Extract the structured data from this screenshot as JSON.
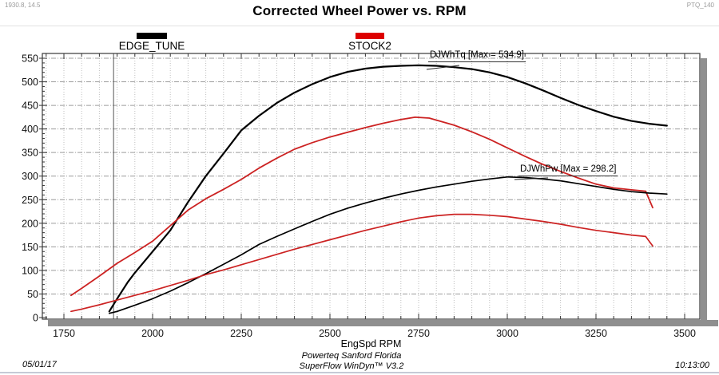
{
  "header": {
    "cursor_readout": "1930.8, 14.5",
    "test_id": "PTQ_140",
    "title": "Corrected Wheel Power vs. RPM"
  },
  "legend": [
    {
      "label": "EDGE_TUNE",
      "color": "#000000"
    },
    {
      "label": "STOCK2",
      "color": "#dd0000"
    }
  ],
  "annotations": [
    {
      "id": "torque-max",
      "text": "DJWhTq [Max = 534.9]",
      "max": 534.9
    },
    {
      "id": "power-max",
      "text": "DJWhPw [Max = 298.2]",
      "max": 298.2
    }
  ],
  "x_axis_title": "EngSpd RPM",
  "footer": {
    "date": "05/01/17",
    "facility": "Powerteq Sanford Florida",
    "software": "SuperFlow WinDyn™ V3.2",
    "time": "10:13:00"
  },
  "chart_data": {
    "type": "line",
    "title": "Corrected Wheel Power vs. RPM",
    "xlabel": "EngSpd RPM",
    "ylabel": "",
    "xlim": [
      1690,
      3540
    ],
    "ylim": [
      0,
      560
    ],
    "x_ticks": [
      1750,
      2000,
      2250,
      2500,
      2750,
      3000,
      3250,
      3500
    ],
    "y_ticks": [
      0,
      50,
      100,
      150,
      200,
      250,
      300,
      350,
      400,
      450,
      500,
      550
    ],
    "grid": {
      "on": true,
      "x_minor_step": 50,
      "y_step": 50
    },
    "legend_position": "top",
    "cursor_line_rpm": 1890,
    "series": [
      {
        "id": "edge-tune-torque",
        "name": "EDGE_TUNE DJWhTq",
        "color": "#000000",
        "width": 2.2,
        "points": [
          [
            1878,
            13
          ],
          [
            1900,
            40
          ],
          [
            1930,
            75
          ],
          [
            1950,
            95
          ],
          [
            2000,
            140
          ],
          [
            2050,
            185
          ],
          [
            2100,
            245
          ],
          [
            2150,
            300
          ],
          [
            2200,
            348
          ],
          [
            2250,
            397
          ],
          [
            2300,
            428
          ],
          [
            2350,
            455
          ],
          [
            2400,
            477
          ],
          [
            2450,
            495
          ],
          [
            2500,
            510
          ],
          [
            2550,
            521
          ],
          [
            2600,
            528
          ],
          [
            2650,
            532
          ],
          [
            2700,
            534
          ],
          [
            2750,
            534.9
          ],
          [
            2800,
            534
          ],
          [
            2850,
            531
          ],
          [
            2900,
            527
          ],
          [
            2950,
            520
          ],
          [
            3000,
            510
          ],
          [
            3050,
            497
          ],
          [
            3100,
            482
          ],
          [
            3150,
            466
          ],
          [
            3200,
            451
          ],
          [
            3250,
            438
          ],
          [
            3300,
            426
          ],
          [
            3350,
            417
          ],
          [
            3400,
            411
          ],
          [
            3450,
            407
          ]
        ]
      },
      {
        "id": "stock2-torque",
        "name": "STOCK2 DJWhTq",
        "color": "#cc2222",
        "width": 1.8,
        "points": [
          [
            1770,
            47
          ],
          [
            1800,
            62
          ],
          [
            1850,
            88
          ],
          [
            1900,
            115
          ],
          [
            1950,
            138
          ],
          [
            2000,
            162
          ],
          [
            2050,
            195
          ],
          [
            2100,
            228
          ],
          [
            2150,
            252
          ],
          [
            2200,
            272
          ],
          [
            2250,
            293
          ],
          [
            2300,
            317
          ],
          [
            2350,
            338
          ],
          [
            2400,
            357
          ],
          [
            2450,
            371
          ],
          [
            2500,
            383
          ],
          [
            2550,
            393
          ],
          [
            2600,
            403
          ],
          [
            2650,
            412
          ],
          [
            2700,
            420
          ],
          [
            2740,
            425
          ],
          [
            2780,
            423
          ],
          [
            2850,
            408
          ],
          [
            2900,
            394
          ],
          [
            2950,
            378
          ],
          [
            3000,
            360
          ],
          [
            3050,
            342
          ],
          [
            3100,
            325
          ],
          [
            3150,
            310
          ],
          [
            3200,
            296
          ],
          [
            3250,
            283
          ],
          [
            3300,
            275
          ],
          [
            3350,
            271
          ],
          [
            3390,
            268
          ],
          [
            3410,
            233
          ]
        ]
      },
      {
        "id": "edge-tune-power",
        "name": "EDGE_TUNE DJWhPw",
        "color": "#000000",
        "width": 1.7,
        "points": [
          [
            1878,
            9
          ],
          [
            1900,
            13
          ],
          [
            1950,
            26
          ],
          [
            2000,
            40
          ],
          [
            2050,
            56
          ],
          [
            2100,
            74
          ],
          [
            2150,
            93
          ],
          [
            2200,
            113
          ],
          [
            2250,
            133
          ],
          [
            2300,
            155
          ],
          [
            2350,
            172
          ],
          [
            2400,
            188
          ],
          [
            2450,
            204
          ],
          [
            2500,
            219
          ],
          [
            2550,
            232
          ],
          [
            2600,
            243
          ],
          [
            2650,
            253
          ],
          [
            2700,
            262
          ],
          [
            2750,
            270
          ],
          [
            2800,
            277
          ],
          [
            2850,
            283
          ],
          [
            2900,
            289
          ],
          [
            2950,
            294
          ],
          [
            3000,
            298.2
          ],
          [
            3050,
            297
          ],
          [
            3100,
            294
          ],
          [
            3150,
            290
          ],
          [
            3200,
            284
          ],
          [
            3250,
            278
          ],
          [
            3300,
            272
          ],
          [
            3350,
            267
          ],
          [
            3400,
            264
          ],
          [
            3450,
            262
          ]
        ]
      },
      {
        "id": "stock2-power",
        "name": "STOCK2 DJWhPw",
        "color": "#cc2222",
        "width": 1.7,
        "points": [
          [
            1770,
            13
          ],
          [
            1800,
            18
          ],
          [
            1850,
            27
          ],
          [
            1900,
            37
          ],
          [
            1950,
            47
          ],
          [
            2000,
            57
          ],
          [
            2050,
            68
          ],
          [
            2100,
            79
          ],
          [
            2150,
            91
          ],
          [
            2200,
            101
          ],
          [
            2250,
            112
          ],
          [
            2300,
            123
          ],
          [
            2350,
            134
          ],
          [
            2400,
            145
          ],
          [
            2450,
            155
          ],
          [
            2500,
            165
          ],
          [
            2550,
            175
          ],
          [
            2600,
            185
          ],
          [
            2650,
            194
          ],
          [
            2700,
            203
          ],
          [
            2750,
            211
          ],
          [
            2800,
            216
          ],
          [
            2850,
            219
          ],
          [
            2900,
            219
          ],
          [
            2950,
            217
          ],
          [
            3000,
            214
          ],
          [
            3050,
            209
          ],
          [
            3100,
            204
          ],
          [
            3150,
            198
          ],
          [
            3200,
            191
          ],
          [
            3250,
            185
          ],
          [
            3300,
            180
          ],
          [
            3350,
            175
          ],
          [
            3390,
            172
          ],
          [
            3410,
            152
          ]
        ]
      }
    ]
  }
}
